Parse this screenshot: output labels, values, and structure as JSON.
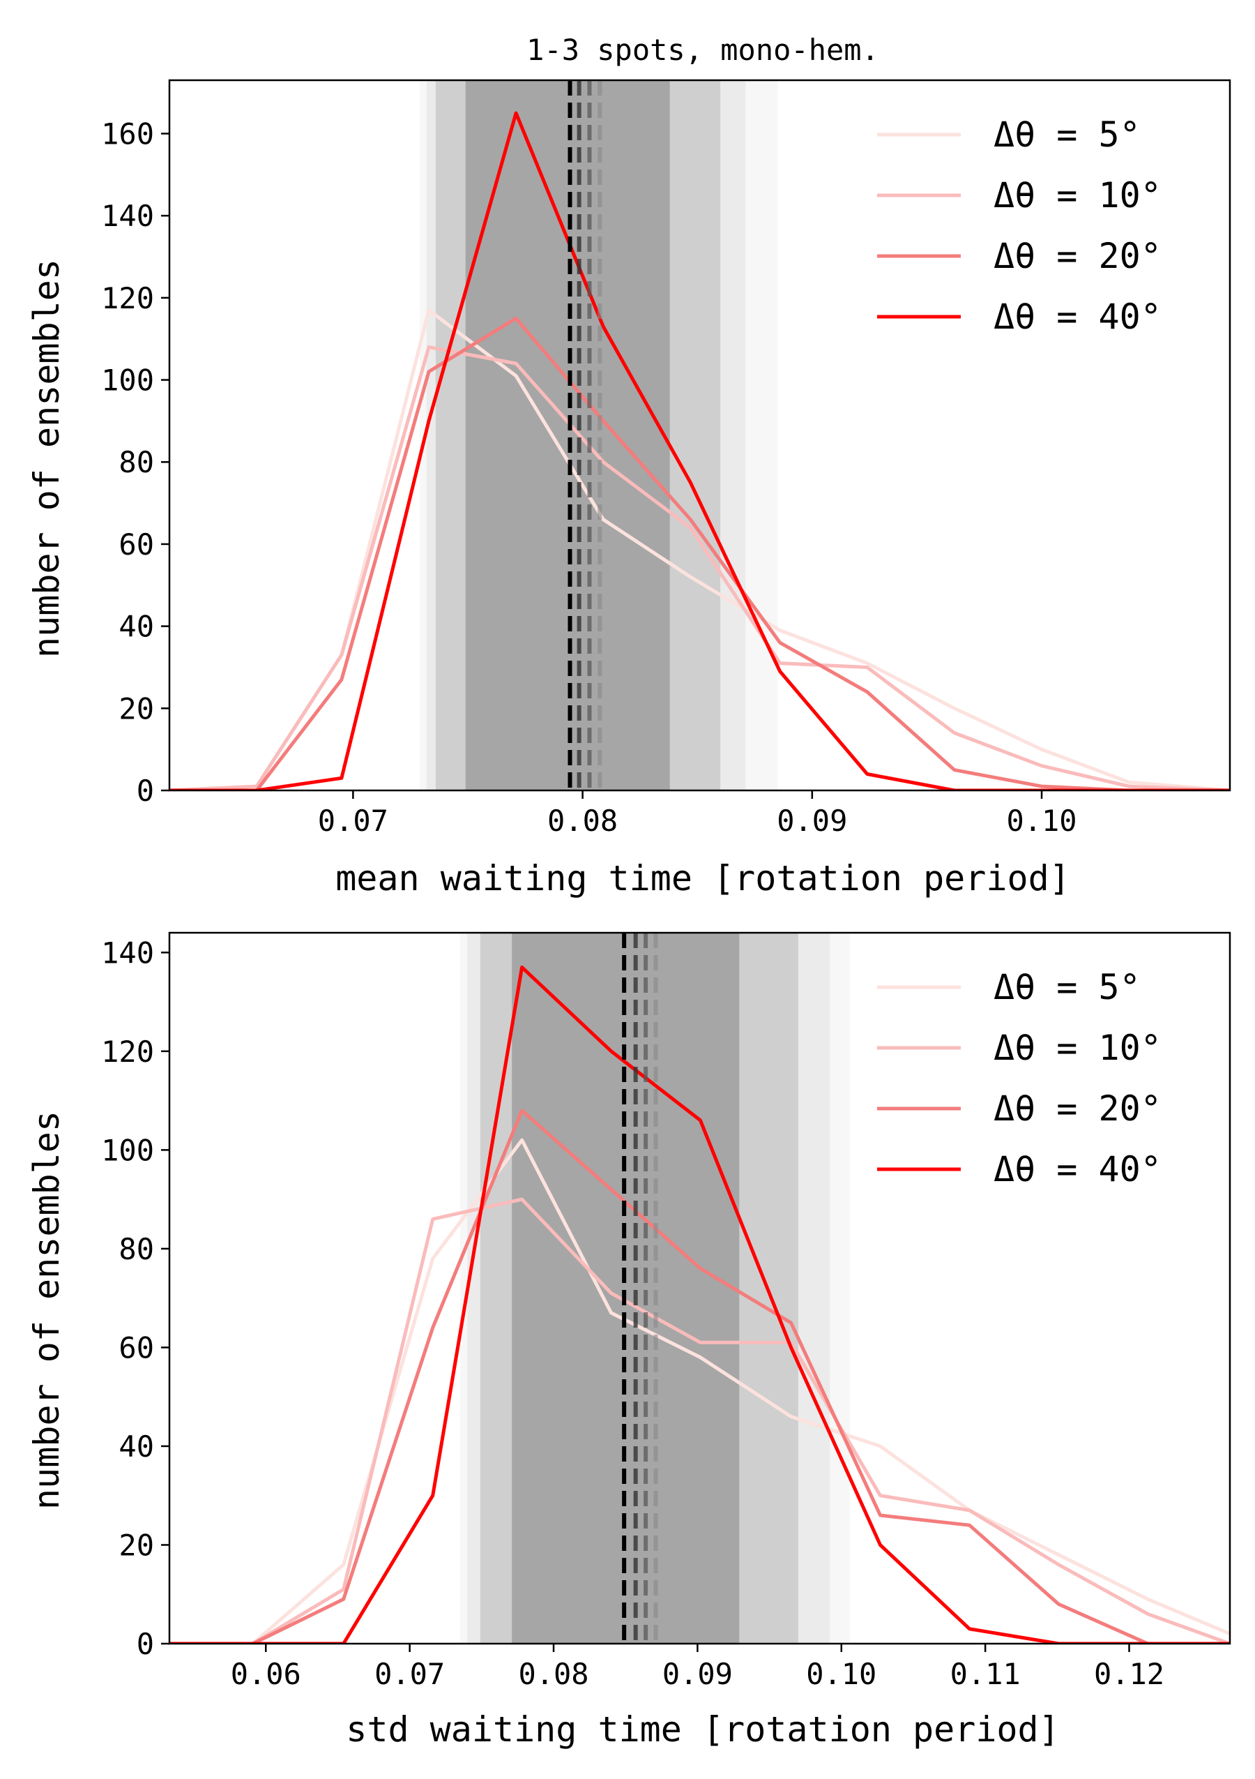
{
  "chart_data": [
    {
      "type": "line",
      "title": "1-3 spots, mono-hem.",
      "xlabel": "mean waiting time [rotation period]",
      "ylabel": "number of ensembles",
      "xlim": [
        0.062,
        0.1082
      ],
      "ylim": [
        0,
        173
      ],
      "xticks": [
        0.07,
        0.08,
        0.09,
        0.1
      ],
      "xtick_labels": [
        "0.07",
        "0.08",
        "0.09",
        "0.10"
      ],
      "yticks": [
        0,
        20,
        40,
        60,
        80,
        100,
        120,
        140,
        160
      ],
      "ytick_labels": [
        "0",
        "20",
        "40",
        "60",
        "80",
        "100",
        "120",
        "140",
        "160"
      ],
      "legend_position": "top-right",
      "grid": false,
      "bands": [
        {
          "x0": 0.0729,
          "x1": 0.0885,
          "color": "#f7f7f7"
        },
        {
          "x0": 0.0732,
          "x1": 0.0871,
          "color": "#ebebeb"
        },
        {
          "x0": 0.0736,
          "x1": 0.086,
          "color": "#cfcfcf"
        },
        {
          "x0": 0.0749,
          "x1": 0.0838,
          "color": "#a6a6a6"
        }
      ],
      "vlines": [
        {
          "x": 0.07945,
          "color": "#000000",
          "opacity": 1.0
        },
        {
          "x": 0.07985,
          "color": "#333333",
          "opacity": 0.8
        },
        {
          "x": 0.0803,
          "color": "#555555",
          "opacity": 0.7
        },
        {
          "x": 0.08075,
          "color": "#888888",
          "opacity": 0.6
        }
      ],
      "series": [
        {
          "name": "Δθ = 5°",
          "color": "#fce2de",
          "x": [
            0.062,
            0.0658,
            0.0695,
            0.0733,
            0.0771,
            0.0809,
            0.0847,
            0.0886,
            0.0924,
            0.0962,
            0.1,
            0.1038,
            0.1082
          ],
          "y": [
            0,
            1,
            33,
            117,
            101,
            66,
            52,
            39,
            31,
            20,
            10,
            2,
            0
          ]
        },
        {
          "name": "Δθ = 10°",
          "color": "#fabbbb",
          "x": [
            0.062,
            0.0658,
            0.0695,
            0.0733,
            0.0771,
            0.0809,
            0.0847,
            0.0886,
            0.0924,
            0.0962,
            0.1,
            0.1038,
            0.1082
          ],
          "y": [
            0,
            1,
            33,
            108,
            104,
            80,
            64,
            31,
            30,
            14,
            6,
            1,
            0
          ]
        },
        {
          "name": "Δθ = 20°",
          "color": "#f47c7c",
          "x": [
            0.062,
            0.0658,
            0.0695,
            0.0733,
            0.0771,
            0.0809,
            0.0847,
            0.0886,
            0.0924,
            0.0962,
            0.1,
            0.1038,
            0.1082
          ],
          "y": [
            0,
            0,
            27,
            102,
            115,
            90,
            66,
            36,
            24,
            5,
            1,
            0,
            0
          ]
        },
        {
          "name": "Δθ = 40°",
          "color": "#ff0000",
          "x": [
            0.062,
            0.0658,
            0.0695,
            0.0733,
            0.0771,
            0.0809,
            0.0847,
            0.0886,
            0.0924,
            0.0962,
            0.1,
            0.1038,
            0.1082
          ],
          "y": [
            0,
            0,
            3,
            90,
            165,
            113,
            75,
            29,
            4,
            0,
            0,
            0,
            0
          ]
        }
      ]
    },
    {
      "type": "line",
      "title": "",
      "xlabel": "std waiting time [rotation period]",
      "ylabel": "number of ensembles",
      "xlim": [
        0.0533,
        0.127
      ],
      "ylim": [
        0,
        144
      ],
      "xticks": [
        0.06,
        0.07,
        0.08,
        0.09,
        0.1,
        0.11,
        0.12
      ],
      "xtick_labels": [
        "0.06",
        "0.07",
        "0.08",
        "0.09",
        "0.10",
        "0.11",
        "0.12"
      ],
      "yticks": [
        0,
        20,
        40,
        60,
        80,
        100,
        120,
        140
      ],
      "ytick_labels": [
        "0",
        "20",
        "40",
        "60",
        "80",
        "100",
        "120",
        "140"
      ],
      "legend_position": "top-right",
      "grid": false,
      "bands": [
        {
          "x0": 0.0735,
          "x1": 0.1006,
          "color": "#f7f7f7"
        },
        {
          "x0": 0.074,
          "x1": 0.0992,
          "color": "#ebebeb"
        },
        {
          "x0": 0.0749,
          "x1": 0.097,
          "color": "#cfcfcf"
        },
        {
          "x0": 0.0771,
          "x1": 0.0929,
          "color": "#a6a6a6"
        }
      ],
      "vlines": [
        {
          "x": 0.0849,
          "color": "#000000",
          "opacity": 1.0
        },
        {
          "x": 0.0857,
          "color": "#333333",
          "opacity": 0.8
        },
        {
          "x": 0.0864,
          "color": "#555555",
          "opacity": 0.7
        },
        {
          "x": 0.0871,
          "color": "#888888",
          "opacity": 0.6
        }
      ],
      "series": [
        {
          "name": "Δθ = 5°",
          "color": "#fce2de",
          "x": [
            0.0533,
            0.0591,
            0.0654,
            0.0716,
            0.0778,
            0.084,
            0.0902,
            0.0965,
            0.1027,
            0.1089,
            0.1151,
            0.1213,
            0.127
          ],
          "y": [
            0,
            0,
            16,
            78,
            102,
            67,
            58,
            46,
            40,
            27,
            18,
            9,
            2
          ]
        },
        {
          "name": "Δθ = 10°",
          "color": "#fabbbb",
          "x": [
            0.0533,
            0.0591,
            0.0654,
            0.0716,
            0.0778,
            0.084,
            0.0902,
            0.0965,
            0.1027,
            0.1089,
            0.1151,
            0.1213,
            0.127
          ],
          "y": [
            0,
            0,
            11,
            86,
            90,
            71,
            61,
            61,
            30,
            27,
            16,
            6,
            0
          ]
        },
        {
          "name": "Δθ = 20°",
          "color": "#f47c7c",
          "x": [
            0.0533,
            0.0591,
            0.0654,
            0.0716,
            0.0778,
            0.084,
            0.0902,
            0.0965,
            0.1027,
            0.1089,
            0.1151,
            0.1213,
            0.127
          ],
          "y": [
            0,
            0,
            9,
            64,
            108,
            92,
            76,
            65,
            26,
            24,
            8,
            0,
            0
          ]
        },
        {
          "name": "Δθ = 40°",
          "color": "#ff0000",
          "x": [
            0.0533,
            0.0591,
            0.0654,
            0.0716,
            0.0778,
            0.084,
            0.0902,
            0.0965,
            0.1027,
            0.1089,
            0.1151,
            0.1213,
            0.127
          ],
          "y": [
            0,
            0,
            0,
            30,
            137,
            120,
            106,
            60,
            20,
            3,
            0,
            0,
            0
          ]
        }
      ]
    }
  ]
}
